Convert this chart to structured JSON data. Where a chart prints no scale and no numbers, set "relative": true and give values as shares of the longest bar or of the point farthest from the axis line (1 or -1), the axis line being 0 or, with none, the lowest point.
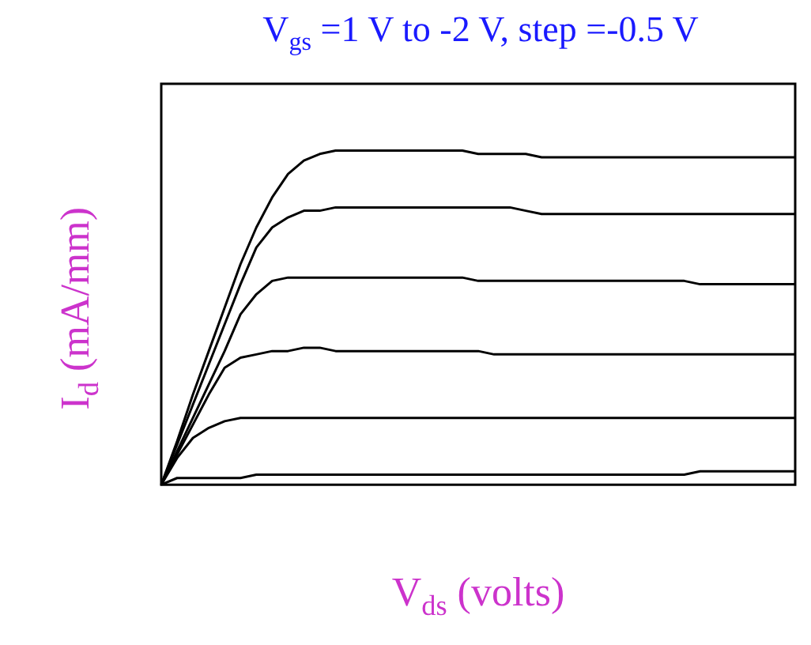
{
  "chart_data": {
    "type": "line",
    "title": "V$_{gs}$ =1 V to -2 V, step =-0.5 V",
    "xlabel": "V$_{ds}$ (volts)",
    "ylabel": "I$_{d}$ (mA/mm)",
    "relative": true,
    "legend": false,
    "marker": "none",
    "line_style": "solid",
    "categories": [
      null,
      null,
      null,
      null,
      null,
      null,
      null,
      null,
      null,
      null,
      null,
      null,
      null,
      null,
      null,
      null,
      null,
      null,
      null,
      null,
      null,
      null,
      null,
      null,
      null,
      null,
      null,
      null,
      null,
      null,
      null,
      null,
      null,
      null,
      null,
      null,
      null,
      null,
      null,
      null,
      null
    ],
    "series": [
      {
        "color": "#000000",
        "values": [
          0,
          0.13,
          0.27,
          0.4,
          0.53,
          0.66,
          0.77,
          0.86,
          0.93,
          0.97,
          0.99,
          1,
          1,
          1,
          1,
          1,
          1,
          1,
          1,
          1,
          0.99,
          0.99,
          0.99,
          0.99,
          0.98,
          0.98,
          0.98,
          0.98,
          0.98,
          0.98,
          0.98,
          0.98,
          0.98,
          0.98,
          0.98,
          0.98,
          0.98,
          0.98,
          0.98,
          0.98,
          0.98
        ]
      },
      {
        "color": "#000000",
        "values": [
          0,
          0.12,
          0.24,
          0.36,
          0.48,
          0.6,
          0.71,
          0.77,
          0.8,
          0.82,
          0.82,
          0.83,
          0.83,
          0.83,
          0.83,
          0.83,
          0.83,
          0.83,
          0.83,
          0.83,
          0.83,
          0.83,
          0.83,
          0.82,
          0.81,
          0.81,
          0.81,
          0.81,
          0.81,
          0.81,
          0.81,
          0.81,
          0.81,
          0.81,
          0.81,
          0.81,
          0.81,
          0.81,
          0.81,
          0.81,
          0.81
        ]
      },
      {
        "color": "#000000",
        "values": [
          0,
          0.1,
          0.2,
          0.3,
          0.4,
          0.51,
          0.57,
          0.61,
          0.62,
          0.62,
          0.62,
          0.62,
          0.62,
          0.62,
          0.62,
          0.62,
          0.62,
          0.62,
          0.62,
          0.62,
          0.61,
          0.61,
          0.61,
          0.61,
          0.61,
          0.61,
          0.61,
          0.61,
          0.61,
          0.61,
          0.61,
          0.61,
          0.61,
          0.61,
          0.6,
          0.6,
          0.6,
          0.6,
          0.6,
          0.6,
          0.6
        ]
      },
      {
        "color": "#000000",
        "values": [
          0,
          0.09,
          0.18,
          0.27,
          0.35,
          0.38,
          0.39,
          0.4,
          0.4,
          0.41,
          0.41,
          0.4,
          0.4,
          0.4,
          0.4,
          0.4,
          0.4,
          0.4,
          0.4,
          0.4,
          0.4,
          0.39,
          0.39,
          0.39,
          0.39,
          0.39,
          0.39,
          0.39,
          0.39,
          0.39,
          0.39,
          0.39,
          0.39,
          0.39,
          0.39,
          0.39,
          0.39,
          0.39,
          0.39,
          0.39,
          0.39
        ]
      },
      {
        "color": "#000000",
        "values": [
          0,
          0.08,
          0.14,
          0.17,
          0.19,
          0.2,
          0.2,
          0.2,
          0.2,
          0.2,
          0.2,
          0.2,
          0.2,
          0.2,
          0.2,
          0.2,
          0.2,
          0.2,
          0.2,
          0.2,
          0.2,
          0.2,
          0.2,
          0.2,
          0.2,
          0.2,
          0.2,
          0.2,
          0.2,
          0.2,
          0.2,
          0.2,
          0.2,
          0.2,
          0.2,
          0.2,
          0.2,
          0.2,
          0.2,
          0.2,
          0.2
        ]
      },
      {
        "color": "#000000",
        "values": [
          0,
          0.02,
          0.02,
          0.02,
          0.02,
          0.02,
          0.03,
          0.03,
          0.03,
          0.03,
          0.03,
          0.03,
          0.03,
          0.03,
          0.03,
          0.03,
          0.03,
          0.03,
          0.03,
          0.03,
          0.03,
          0.03,
          0.03,
          0.03,
          0.03,
          0.03,
          0.03,
          0.03,
          0.03,
          0.03,
          0.03,
          0.03,
          0.03,
          0.03,
          0.04,
          0.04,
          0.04,
          0.04,
          0.04,
          0.04,
          0.04
        ]
      }
    ]
  }
}
